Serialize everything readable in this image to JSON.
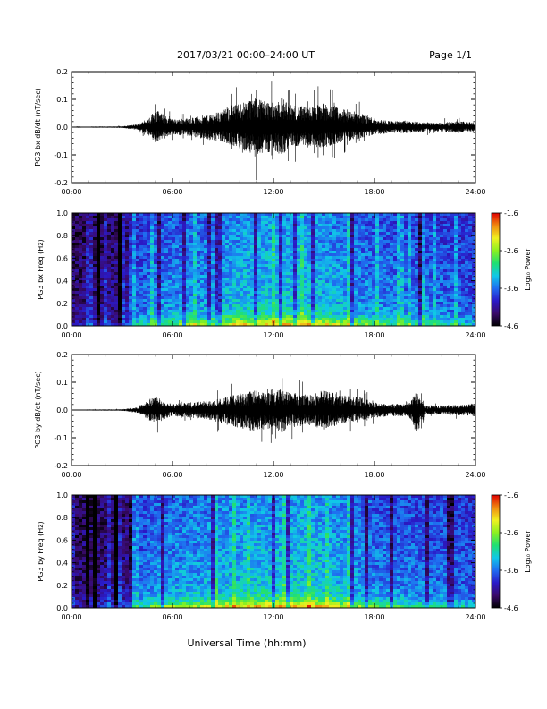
{
  "header": {
    "title": "2017/03/21   00:00–24:00 UT",
    "page": "Page 1/1"
  },
  "footer": {
    "xlabel": "Universal Time (hh:mm)"
  },
  "colors": {
    "trace": "#000000",
    "colormap": [
      "#000000",
      "#3a0a6a",
      "#2a1ac8",
      "#1f6df0",
      "#10c8e8",
      "#20e070",
      "#8cf020",
      "#f0f020",
      "#f08a10",
      "#e00000"
    ]
  },
  "chart_data": [
    {
      "type": "line",
      "ylabel": "PG3 bx dB/dt (nT/sec)",
      "x_range_hours": [
        0,
        24
      ],
      "xticks": [
        "00:00",
        "06:00",
        "12:00",
        "18:00",
        "24:00"
      ],
      "ylim": [
        -0.2,
        0.2
      ],
      "yticks": [
        "0.2",
        "0.1",
        "0.0",
        "-0.1",
        "-0.2"
      ],
      "envelope": {
        "hours": [
          0,
          3,
          4,
          4.5,
          5,
          5.5,
          6,
          7,
          8,
          9,
          10,
          11,
          11.5,
          12,
          12.5,
          13,
          14,
          15,
          16,
          17,
          18,
          19,
          20,
          21,
          22,
          23,
          24
        ],
        "upper": [
          0.003,
          0.005,
          0.02,
          0.05,
          0.12,
          0.08,
          0.05,
          0.06,
          0.08,
          0.11,
          0.16,
          0.2,
          0.18,
          0.16,
          0.2,
          0.15,
          0.13,
          0.16,
          0.12,
          0.1,
          0.06,
          0.04,
          0.04,
          0.03,
          0.03,
          0.04,
          0.03
        ],
        "lower": [
          -0.003,
          -0.005,
          -0.02,
          -0.05,
          -0.1,
          -0.07,
          -0.05,
          -0.06,
          -0.08,
          -0.1,
          -0.14,
          -0.2,
          -0.18,
          -0.15,
          -0.19,
          -0.13,
          -0.12,
          -0.14,
          -0.1,
          -0.08,
          -0.05,
          -0.04,
          -0.04,
          -0.03,
          -0.03,
          -0.04,
          -0.03
        ]
      }
    },
    {
      "type": "heatmap",
      "ylabel": "PG3 bx Freq (Hz)",
      "x_range_hours": [
        0,
        24
      ],
      "xticks": [
        "00:00",
        "06:00",
        "12:00",
        "18:00",
        "24:00"
      ],
      "ylim": [
        0.0,
        1.0
      ],
      "yticks": [
        "1.0",
        "0.8",
        "0.6",
        "0.4",
        "0.2",
        "0.0"
      ],
      "colorbar": {
        "label": "Log₁₀ Power",
        "range": [
          -4.6,
          -1.6
        ],
        "ticks": [
          "-1.6",
          "-2.6",
          "-3.6",
          "-4.6"
        ]
      },
      "activity_hours": [
        0,
        3,
        5,
        8,
        10,
        12,
        13,
        14,
        16,
        18,
        20,
        22,
        24
      ],
      "activity_level": [
        0.1,
        0.2,
        0.5,
        0.6,
        0.75,
        0.8,
        0.8,
        0.8,
        0.65,
        0.5,
        0.45,
        0.4,
        0.3
      ]
    },
    {
      "type": "line",
      "ylabel": "PG3 by dB/dt (nT/sec)",
      "x_range_hours": [
        0,
        24
      ],
      "xticks": [
        "00:00",
        "06:00",
        "12:00",
        "18:00",
        "24:00"
      ],
      "ylim": [
        -0.2,
        0.2
      ],
      "yticks": [
        "0.2",
        "0.1",
        "0.0",
        "-0.1",
        "-0.2"
      ],
      "envelope": {
        "hours": [
          0,
          3,
          4,
          4.5,
          5,
          5.5,
          6,
          7,
          8,
          9,
          10,
          11,
          11.5,
          12,
          12.5,
          13,
          14,
          15,
          16,
          17,
          18,
          19,
          20,
          20.5,
          21,
          22,
          24
        ],
        "upper": [
          0.003,
          0.005,
          0.02,
          0.06,
          0.1,
          0.06,
          0.04,
          0.05,
          0.06,
          0.08,
          0.11,
          0.13,
          0.12,
          0.11,
          0.14,
          0.12,
          0.1,
          0.13,
          0.1,
          0.09,
          0.05,
          0.04,
          0.04,
          0.12,
          0.03,
          0.03,
          0.04
        ],
        "lower": [
          -0.003,
          -0.005,
          -0.02,
          -0.06,
          -0.1,
          -0.06,
          -0.04,
          -0.05,
          -0.06,
          -0.09,
          -0.12,
          -0.15,
          -0.13,
          -0.12,
          -0.15,
          -0.12,
          -0.1,
          -0.13,
          -0.09,
          -0.07,
          -0.05,
          -0.04,
          -0.04,
          -0.16,
          -0.03,
          -0.03,
          -0.04
        ]
      }
    },
    {
      "type": "heatmap",
      "ylabel": "PG3 by Freq (Hz)",
      "x_range_hours": [
        0,
        24
      ],
      "xticks": [
        "00:00",
        "06:00",
        "12:00",
        "18:00",
        "24:00"
      ],
      "ylim": [
        0.0,
        1.0
      ],
      "yticks": [
        "1.0",
        "0.8",
        "0.6",
        "0.4",
        "0.2",
        "0.0"
      ],
      "colorbar": {
        "label": "Log₁₀ Power",
        "range": [
          -4.6,
          -1.6
        ],
        "ticks": [
          "-1.6",
          "-2.6",
          "-3.6",
          "-4.6"
        ]
      },
      "activity_hours": [
        0,
        3,
        5,
        8,
        10,
        12,
        13,
        14,
        16,
        18,
        20,
        22,
        24
      ],
      "activity_level": [
        0.1,
        0.2,
        0.55,
        0.65,
        0.75,
        0.8,
        0.8,
        0.85,
        0.7,
        0.5,
        0.45,
        0.4,
        0.3
      ]
    }
  ]
}
